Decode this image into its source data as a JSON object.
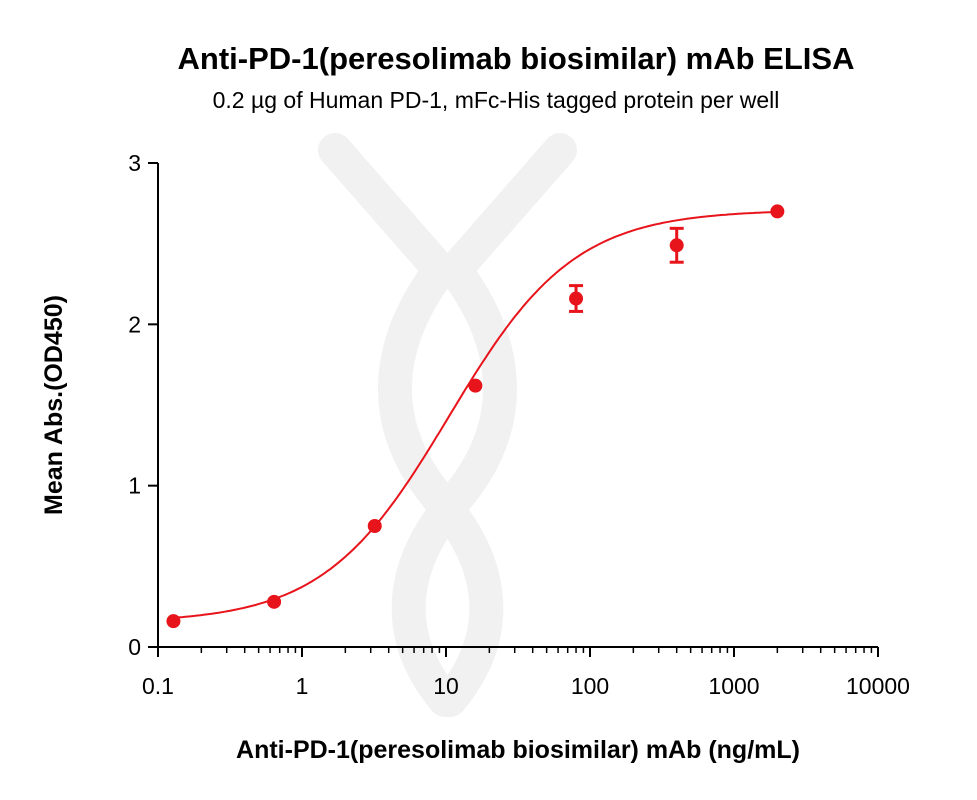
{
  "chart_data": {
    "type": "scatter",
    "title": "Anti-PD-1(peresolimab biosimilar) mAb ELISA",
    "subtitle": "0.2 µg of Human PD-1, mFc-His tagged protein per well",
    "xlabel": "Anti-PD-1(peresolimab biosimilar) mAb (ng/mL)",
    "ylabel": "Mean Abs.(OD450)",
    "x_scale": "log",
    "xlim": [
      0.1,
      10000
    ],
    "ylim": [
      0,
      3
    ],
    "x_ticks": [
      "0.1",
      "1",
      "10",
      "100",
      "1000",
      "10000"
    ],
    "y_ticks": [
      "0",
      "1",
      "2",
      "3"
    ],
    "grid": false,
    "color": "#e8141b",
    "points": [
      {
        "x": 0.128,
        "y": 0.16,
        "err": 0.01
      },
      {
        "x": 0.64,
        "y": 0.28,
        "err": 0.01
      },
      {
        "x": 3.2,
        "y": 0.75,
        "err": 0.01
      },
      {
        "x": 16,
        "y": 1.62,
        "err": 0.01
      },
      {
        "x": 80,
        "y": 2.16,
        "err": 0.08
      },
      {
        "x": 400,
        "y": 2.49,
        "err": 0.105
      },
      {
        "x": 2000,
        "y": 2.7,
        "err": 0.01
      }
    ],
    "fit": {
      "model": "4PL",
      "bottom": 0.15,
      "top": 2.71,
      "ec50": 10.5,
      "hill": 1.0
    }
  }
}
